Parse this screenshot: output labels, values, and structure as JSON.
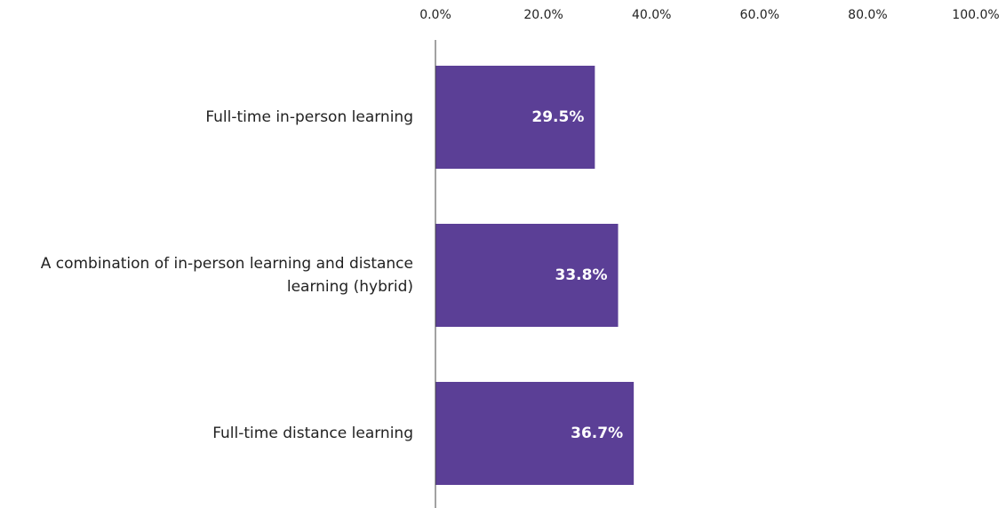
{
  "chart_data": {
    "type": "barh",
    "categories": [
      "Full-time in-person learning",
      "A combination of in-person learning and distance learning (hybrid)",
      "Full-time distance learning"
    ],
    "values": [
      29.5,
      33.8,
      36.7
    ],
    "value_labels": [
      "29.5%",
      "33.8%",
      "36.7%"
    ],
    "color": "#5b3f96",
    "xlim": [
      0,
      100
    ],
    "xticks": [
      {
        "value": 0,
        "label": "0.0%"
      },
      {
        "value": 20,
        "label": "20.0%"
      },
      {
        "value": 40,
        "label": "40.0%"
      },
      {
        "value": 60,
        "label": "60.0%"
      },
      {
        "value": 80,
        "label": "80.0%"
      },
      {
        "value": 100,
        "label": "100.0%"
      }
    ],
    "grid": false
  }
}
